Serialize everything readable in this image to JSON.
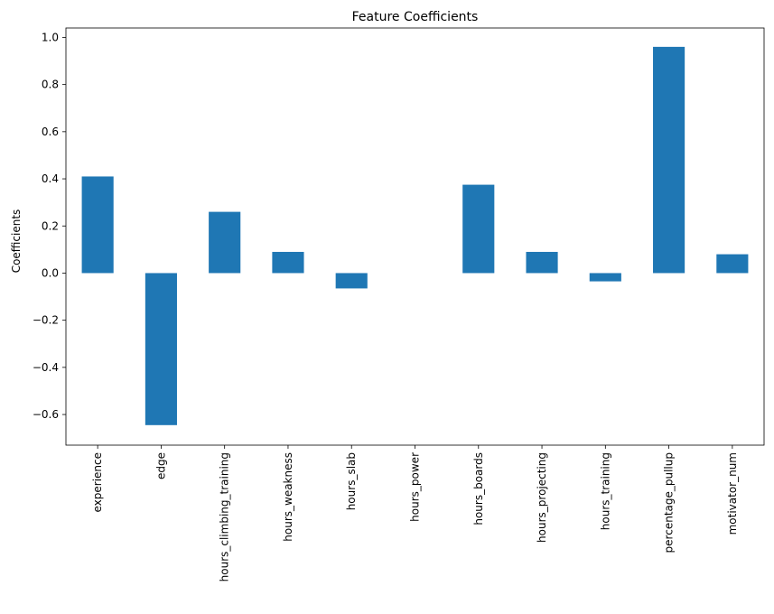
{
  "chart_data": {
    "type": "bar",
    "title": "Feature Coefficients",
    "xlabel": "",
    "ylabel": "Coefficients",
    "categories": [
      "experience",
      "edge",
      "hours_climbing_training",
      "hours_weakness",
      "hours_slab",
      "hours_power",
      "hours_boards",
      "hours_projecting",
      "hours_training",
      "percentage_pullup",
      "motivator_num"
    ],
    "values": [
      0.41,
      -0.645,
      0.26,
      0.09,
      -0.065,
      0.0,
      0.375,
      0.09,
      -0.035,
      0.96,
      0.08
    ],
    "ylim": [
      -0.73,
      1.04
    ],
    "yticks": [
      -0.6,
      -0.4,
      -0.2,
      0.0,
      0.2,
      0.4,
      0.6,
      0.8,
      1.0
    ],
    "ytick_labels": [
      "−0.6",
      "−0.4",
      "−0.2",
      "0.0",
      "0.2",
      "0.4",
      "0.6",
      "0.8",
      "1.0"
    ],
    "bar_color": "#1f77b4",
    "grid": false,
    "legend": "none"
  }
}
